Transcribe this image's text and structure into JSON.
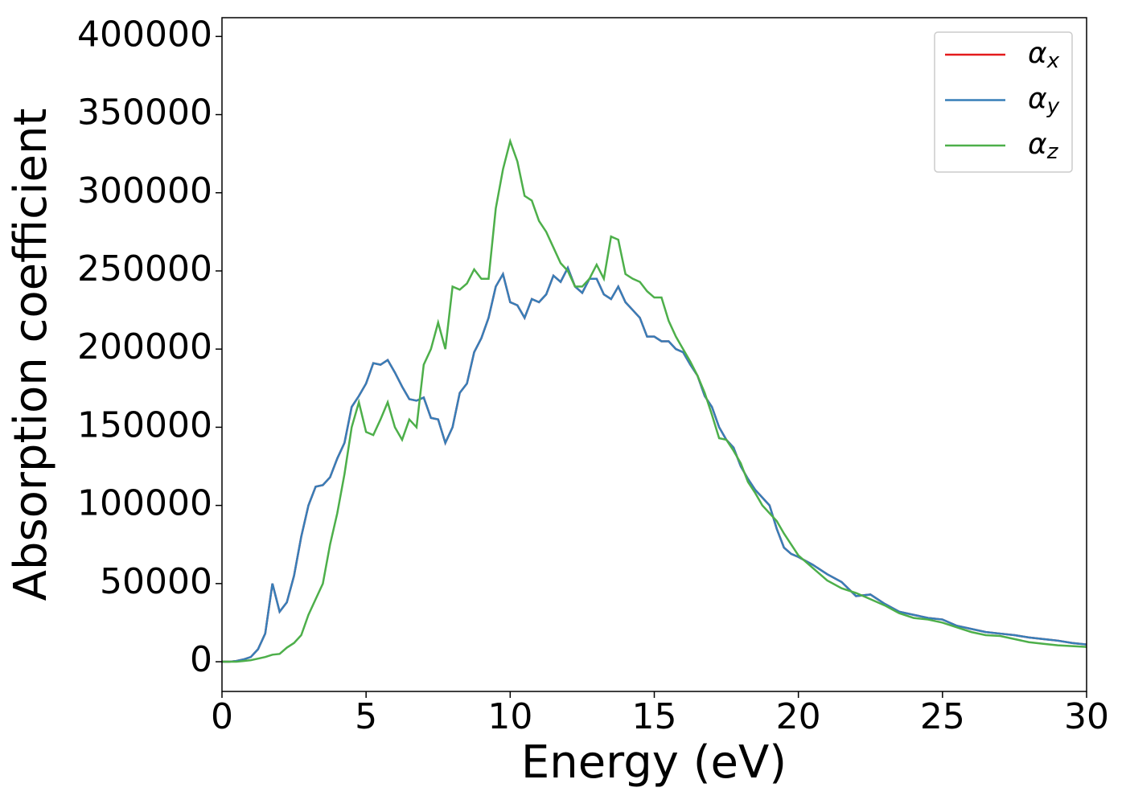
{
  "chart_data": {
    "type": "line",
    "xlabel": "Energy (eV)",
    "ylabel": "Absorption coefficient",
    "x": [
      0,
      0.25,
      0.5,
      0.75,
      1,
      1.25,
      1.5,
      1.75,
      2,
      2.25,
      2.5,
      2.75,
      3,
      3.25,
      3.5,
      3.75,
      4,
      4.25,
      4.5,
      4.75,
      5,
      5.25,
      5.5,
      5.75,
      6,
      6.25,
      6.5,
      6.75,
      7,
      7.25,
      7.5,
      7.75,
      8,
      8.25,
      8.5,
      8.75,
      9,
      9.25,
      9.5,
      9.75,
      10,
      10.25,
      10.5,
      10.75,
      11,
      11.25,
      11.5,
      11.75,
      12,
      12.25,
      12.5,
      12.75,
      13,
      13.25,
      13.5,
      13.75,
      14,
      14.25,
      14.5,
      14.75,
      15,
      15.25,
      15.5,
      15.75,
      16,
      16.25,
      16.5,
      16.75,
      17,
      17.25,
      17.5,
      17.75,
      18,
      18.25,
      18.5,
      18.75,
      19,
      19.25,
      19.5,
      19.75,
      20,
      20.5,
      21,
      21.5,
      22,
      22.5,
      23,
      23.5,
      24,
      24.5,
      25,
      25.5,
      26,
      26.5,
      27,
      27.5,
      28,
      28.5,
      29,
      29.5,
      30
    ],
    "series": [
      {
        "name": "αx",
        "color": "#e41a1c",
        "values": [
          0,
          0,
          500,
          1500,
          3000,
          8000,
          18000,
          50000,
          32000,
          38000,
          55000,
          80000,
          100000,
          112000,
          113000,
          118000,
          130000,
          140000,
          163000,
          170000,
          178000,
          191000,
          190000,
          193000,
          185000,
          176000,
          168000,
          167000,
          169000,
          156000,
          155000,
          140000,
          150000,
          172000,
          178000,
          198000,
          207000,
          220000,
          240000,
          248000,
          230000,
          228000,
          220000,
          232000,
          230000,
          235000,
          247000,
          243000,
          252000,
          240000,
          236000,
          245000,
          245000,
          235000,
          232000,
          240000,
          230000,
          225000,
          220000,
          208000,
          208000,
          205000,
          205000,
          200000,
          198000,
          190000,
          183000,
          170000,
          163000,
          150000,
          142000,
          137000,
          125000,
          117000,
          110000,
          105000,
          100000,
          85000,
          73000,
          69000,
          67000,
          62000,
          56000,
          51000,
          42000,
          43000,
          37000,
          32000,
          30000,
          28000,
          27000,
          23000,
          21000,
          19000,
          18000,
          17000,
          15500,
          14500,
          13500,
          12000,
          11000
        ]
      },
      {
        "name": "αy",
        "color": "#377eb8",
        "values": [
          0,
          0,
          500,
          1500,
          3000,
          8000,
          18000,
          50000,
          32000,
          38000,
          55000,
          80000,
          100000,
          112000,
          113000,
          118000,
          130000,
          140000,
          163000,
          170000,
          178000,
          191000,
          190000,
          193000,
          185000,
          176000,
          168000,
          167000,
          169000,
          156000,
          155000,
          140000,
          150000,
          172000,
          178000,
          198000,
          207000,
          220000,
          240000,
          248000,
          230000,
          228000,
          220000,
          232000,
          230000,
          235000,
          247000,
          243000,
          252000,
          240000,
          236000,
          245000,
          245000,
          235000,
          232000,
          240000,
          230000,
          225000,
          220000,
          208000,
          208000,
          205000,
          205000,
          200000,
          198000,
          190000,
          183000,
          170000,
          163000,
          150000,
          142000,
          137000,
          125000,
          117000,
          110000,
          105000,
          100000,
          85000,
          73000,
          69000,
          67000,
          62000,
          56000,
          51000,
          42000,
          43000,
          37000,
          32000,
          30000,
          28000,
          27000,
          23000,
          21000,
          19000,
          18000,
          17000,
          15500,
          14500,
          13500,
          12000,
          11000
        ]
      },
      {
        "name": "αz",
        "color": "#4daf4a",
        "values": [
          0,
          0,
          0,
          500,
          1000,
          2000,
          3000,
          4500,
          5000,
          9000,
          12000,
          17000,
          30000,
          40000,
          50000,
          75000,
          95000,
          120000,
          150000,
          166000,
          147000,
          145000,
          155000,
          166000,
          150000,
          142000,
          155000,
          150000,
          190000,
          200000,
          217000,
          200000,
          240000,
          238000,
          242000,
          251000,
          245000,
          245000,
          290000,
          315000,
          333000,
          320000,
          298000,
          295000,
          282000,
          275000,
          265000,
          255000,
          250000,
          240000,
          240000,
          245000,
          254000,
          245000,
          272000,
          270000,
          248000,
          245000,
          243000,
          237000,
          233000,
          233000,
          218000,
          208000,
          200000,
          192000,
          183000,
          172000,
          158000,
          143000,
          142000,
          135000,
          127000,
          115000,
          108000,
          100000,
          95000,
          90000,
          82000,
          75000,
          68000,
          60000,
          52000,
          47000,
          44000,
          40000,
          36000,
          31000,
          28000,
          27000,
          25000,
          22000,
          19000,
          17000,
          16500,
          14500,
          12500,
          11500,
          10500,
          10000,
          9500
        ]
      }
    ],
    "xlim": [
      0,
      30
    ],
    "xticks": [
      0,
      5,
      10,
      15,
      20,
      25,
      30
    ],
    "ylim": [
      -19000,
      412000
    ],
    "yticks": [
      0,
      50000,
      100000,
      150000,
      200000,
      250000,
      300000,
      350000,
      400000
    ],
    "legend": "upper right",
    "grid": false
  }
}
